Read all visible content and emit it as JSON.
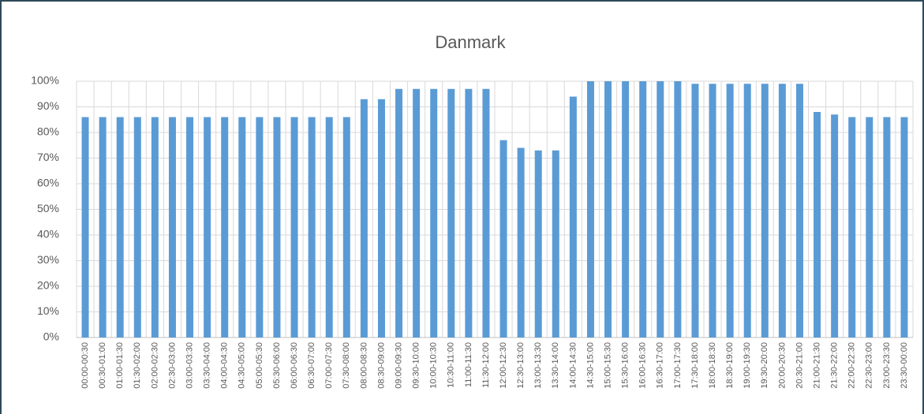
{
  "chart_data": {
    "type": "bar",
    "title": "Danmark",
    "categories": [
      "00:00-00:30",
      "00:30-01:00",
      "01:00-01:30",
      "01:30-02:00",
      "02:00-02:30",
      "02:30-03:00",
      "03:00-03:30",
      "03:30-04:00",
      "04:00-04:30",
      "04:30-05:00",
      "05:00-05:30",
      "05:30-06:00",
      "06:00-06:30",
      "06:30-07:00",
      "07:00-07:30",
      "07:30-08:00",
      "08:00-08:30",
      "08:30-09:00",
      "09:00-09:30",
      "09:30-10:00",
      "10:00-10:30",
      "10:30-11:00",
      "11:00-11:30",
      "11:30-12:00",
      "12:00-12:30",
      "12:30-13:00",
      "13:00-13:30",
      "13:30-14:00",
      "14:00-14:30",
      "14:30-15:00",
      "15:00-15:30",
      "15:30-16:00",
      "16:00-16:30",
      "16:30-17:00",
      "17:00-17:30",
      "17:30-18:00",
      "18:00-18:30",
      "18:30-19:00",
      "19:00-19:30",
      "19:30-20:00",
      "20:00-20:30",
      "20:30-21:00",
      "21:00-21:30",
      "21:30-22:00",
      "22:00-22:30",
      "22:30-23:00",
      "23:00-23:30",
      "23:30-00:00"
    ],
    "values": [
      86,
      86,
      86,
      86,
      86,
      86,
      86,
      86,
      86,
      86,
      86,
      86,
      86,
      86,
      86,
      86,
      93,
      93,
      97,
      97,
      97,
      97,
      97,
      97,
      77,
      74,
      73,
      73,
      94,
      100,
      100,
      100,
      100,
      100,
      100,
      99,
      99,
      99,
      99,
      99,
      99,
      99,
      88,
      87,
      86,
      86,
      86,
      86
    ],
    "color": "#5b9bd5",
    "ylim": [
      0,
      100
    ],
    "yticks": [
      {
        "value": 0,
        "label": "0%"
      },
      {
        "value": 10,
        "label": "10%"
      },
      {
        "value": 20,
        "label": "20%"
      },
      {
        "value": 30,
        "label": "30%"
      },
      {
        "value": 40,
        "label": "40%"
      },
      {
        "value": 50,
        "label": "50%"
      },
      {
        "value": 60,
        "label": "60%"
      },
      {
        "value": 70,
        "label": "70%"
      },
      {
        "value": 80,
        "label": "80%"
      },
      {
        "value": 90,
        "label": "90%"
      },
      {
        "value": 100,
        "label": "100%"
      }
    ],
    "grid": true
  }
}
